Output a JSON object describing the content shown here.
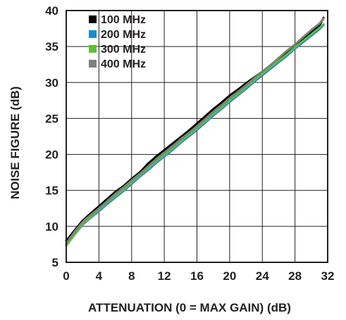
{
  "chart_data": {
    "type": "line",
    "title": "",
    "xlabel": "ATTENUATION (0 = MAX GAIN) (dB)",
    "ylabel": "NOISE FIGURE (dB)",
    "xlim": [
      0,
      32
    ],
    "ylim": [
      5,
      40
    ],
    "x_ticks": [
      0,
      4,
      8,
      12,
      16,
      20,
      24,
      28,
      32
    ],
    "y_ticks": [
      5,
      10,
      15,
      20,
      25,
      30,
      35,
      40
    ],
    "grid": true,
    "legend_position": "top-left",
    "series": [
      {
        "name": "100 MHz",
        "color": "#000000",
        "x": [
          0,
          1,
          2,
          3,
          4,
          5,
          6,
          7,
          8,
          9,
          10,
          11,
          12,
          13,
          14,
          15,
          16,
          17,
          18,
          19,
          20,
          21,
          22,
          23,
          24,
          25,
          26,
          27,
          28,
          29,
          30,
          31,
          31.5
        ],
        "y": [
          8.0,
          9.4,
          10.8,
          11.8,
          12.8,
          13.8,
          14.8,
          15.6,
          16.6,
          17.5,
          18.7,
          19.7,
          20.6,
          21.5,
          22.4,
          23.3,
          24.3,
          25.3,
          26.3,
          27.2,
          28.2,
          29.0,
          29.9,
          30.7,
          31.5,
          32.4,
          33.3,
          34.2,
          35.1,
          36.0,
          37.0,
          37.9,
          39.0
        ]
      },
      {
        "name": "200 MHz",
        "color": "#1a8dc8",
        "x": [
          0,
          1,
          2,
          3,
          4,
          5,
          6,
          7,
          8,
          9,
          10,
          11,
          12,
          13,
          14,
          15,
          16,
          17,
          18,
          19,
          20,
          21,
          22,
          23,
          24,
          25,
          26,
          27,
          28,
          29,
          30,
          31,
          31.5
        ],
        "y": [
          7.4,
          8.8,
          10.2,
          11.2,
          12.1,
          13.1,
          14.0,
          14.9,
          15.9,
          16.9,
          17.8,
          18.8,
          19.7,
          20.6,
          21.6,
          22.5,
          23.4,
          24.4,
          25.4,
          26.3,
          27.3,
          28.2,
          29.1,
          30.1,
          31.0,
          31.9,
          32.8,
          33.7,
          34.7,
          35.6,
          36.5,
          37.4,
          38.0
        ]
      },
      {
        "name": "300 MHz",
        "color": "#5fbf3a",
        "x": [
          0,
          1,
          2,
          3,
          4,
          5,
          6,
          7,
          8,
          9,
          10,
          11,
          12,
          13,
          14,
          15,
          16,
          17,
          18,
          19,
          20,
          21,
          22,
          23,
          24,
          25,
          26,
          27,
          28,
          29,
          30,
          31,
          31.5
        ],
        "y": [
          7.3,
          8.8,
          10.3,
          11.3,
          12.3,
          13.3,
          14.2,
          15.1,
          16.1,
          17.1,
          18.0,
          19.0,
          19.9,
          20.8,
          21.8,
          22.7,
          23.6,
          24.6,
          25.6,
          26.5,
          27.5,
          28.4,
          29.3,
          30.3,
          31.2,
          32.1,
          33.0,
          33.9,
          34.9,
          35.8,
          36.7,
          37.6,
          38.1
        ]
      },
      {
        "name": "400 MHz",
        "color": "#808080",
        "x": [
          0,
          1,
          2,
          3,
          4,
          5,
          6,
          7,
          8,
          9,
          10,
          11,
          12,
          13,
          14,
          15,
          16,
          17,
          18,
          19,
          20,
          21,
          22,
          23,
          24,
          25,
          26,
          27,
          28,
          29,
          30,
          31,
          31.5
        ],
        "y": [
          7.6,
          9.2,
          10.6,
          11.6,
          12.5,
          13.5,
          14.5,
          15.4,
          16.4,
          17.3,
          18.3,
          19.3,
          20.2,
          21.1,
          22.1,
          23.0,
          23.9,
          24.9,
          25.9,
          26.8,
          27.8,
          28.7,
          29.6,
          30.6,
          31.5,
          32.4,
          33.4,
          34.4,
          35.3,
          36.3,
          37.3,
          38.2,
          38.9
        ]
      }
    ]
  }
}
